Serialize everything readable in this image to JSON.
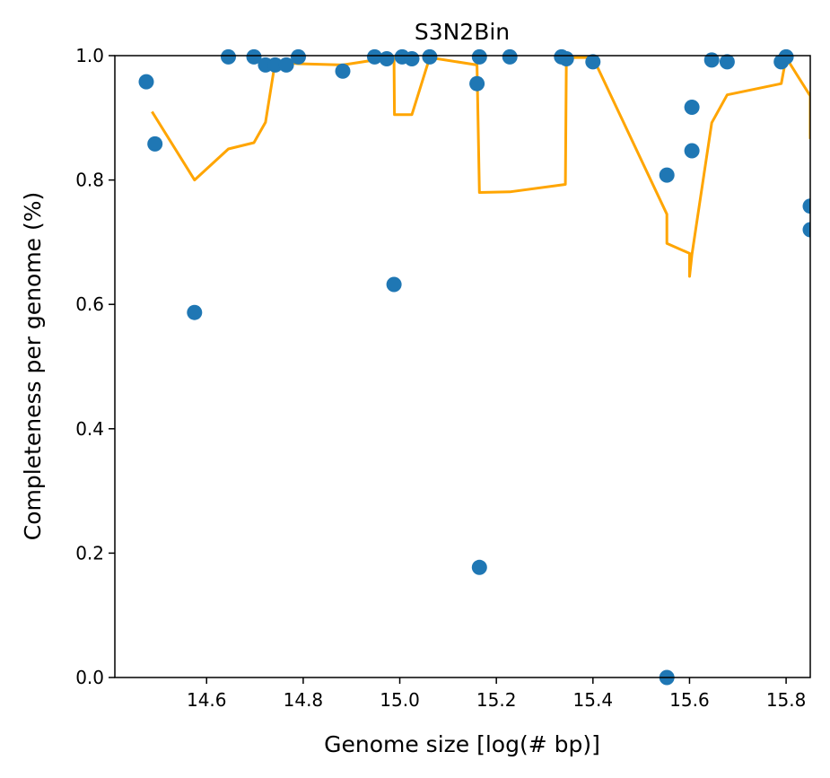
{
  "chart_data": {
    "type": "scatter",
    "title": "S3N2Bin",
    "xlabel": "Genome size [log(# bp)]",
    "ylabel": "Completeness per genome (%)",
    "xlim": [
      14.41,
      15.85
    ],
    "ylim": [
      0.0,
      1.0
    ],
    "xticks": [
      14.6,
      14.8,
      15.0,
      15.2,
      15.4,
      15.6,
      15.8
    ],
    "yticks": [
      0.0,
      0.2,
      0.4,
      0.6,
      0.8,
      1.0
    ],
    "xtick_labels": [
      "14.6",
      "14.8",
      "15.0",
      "15.2",
      "15.4",
      "15.6",
      "15.8"
    ],
    "ytick_labels": [
      "0.0",
      "0.2",
      "0.4",
      "0.6",
      "0.8",
      "1.0"
    ],
    "grid": false,
    "colors": {
      "scatter": "#1f77b4",
      "line": "#ffa500"
    },
    "series": [
      {
        "type": "scatter",
        "x": [
          14.475,
          14.493,
          14.575,
          14.645,
          14.698,
          14.722,
          14.742,
          14.765,
          14.79,
          14.882,
          14.948,
          14.973,
          14.988,
          15.005,
          15.025,
          15.062,
          15.16,
          15.165,
          15.228,
          15.335,
          15.345,
          15.4,
          15.553,
          15.553,
          15.605,
          15.605,
          15.646,
          15.678,
          15.79,
          15.8,
          15.85,
          15.85,
          15.165
        ],
        "y": [
          0.958,
          0.858,
          0.587,
          0.998,
          0.998,
          0.985,
          0.985,
          0.985,
          0.998,
          0.975,
          0.998,
          0.995,
          0.632,
          0.998,
          0.995,
          0.998,
          0.955,
          0.998,
          0.998,
          0.998,
          0.995,
          0.99,
          0.808,
          0.0,
          0.917,
          0.847,
          0.993,
          0.99,
          0.99,
          0.998,
          0.758,
          0.72,
          0.177
        ]
      },
      {
        "type": "line",
        "x": [
          14.487,
          14.575,
          14.645,
          14.698,
          14.722,
          14.742,
          14.79,
          14.882,
          14.948,
          14.973,
          14.988,
          14.989,
          15.025,
          15.062,
          15.16,
          15.165,
          15.228,
          15.343,
          15.345,
          15.4,
          15.553,
          15.553,
          15.6,
          15.6,
          15.605,
          15.605,
          15.646,
          15.678,
          15.79,
          15.8,
          15.85,
          15.85
        ],
        "y": [
          0.91,
          0.8,
          0.85,
          0.86,
          0.893,
          0.99,
          0.987,
          0.985,
          0.993,
          0.995,
          0.997,
          0.905,
          0.905,
          0.997,
          0.985,
          0.78,
          0.781,
          0.793,
          0.997,
          0.997,
          0.745,
          0.698,
          0.682,
          0.645,
          0.68,
          0.68,
          0.892,
          0.937,
          0.955,
          0.997,
          0.935,
          0.866
        ]
      }
    ]
  }
}
